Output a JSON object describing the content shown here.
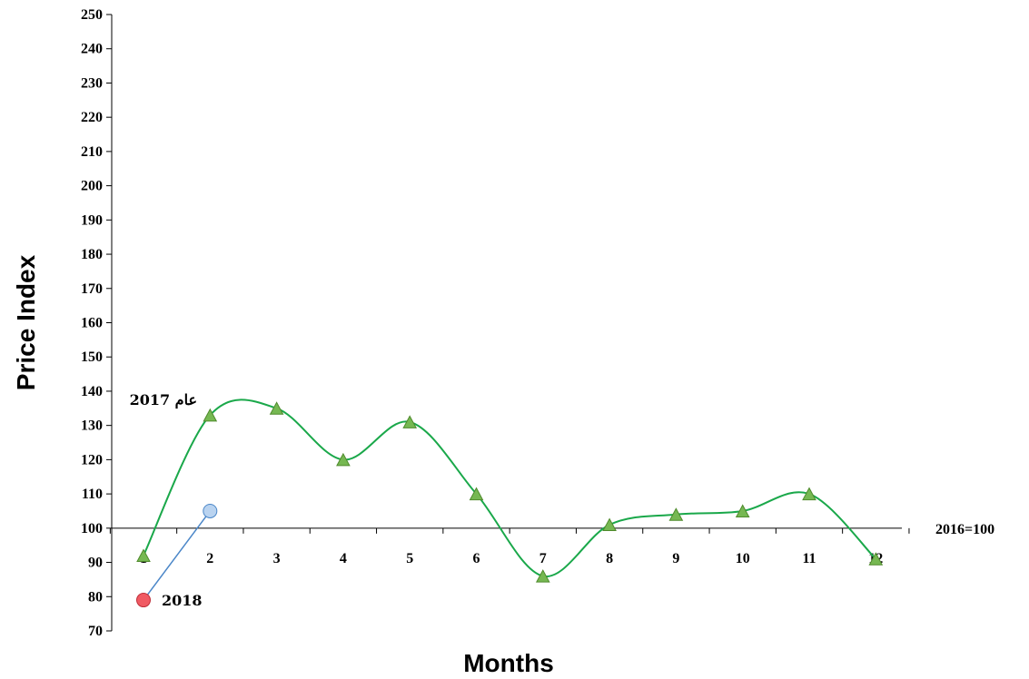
{
  "chart_data": {
    "type": "line",
    "xlabel": "Months",
    "ylabel": "Price Index",
    "base_note": "2016=100",
    "ylim": [
      70,
      250
    ],
    "y_ticks": [
      70,
      80,
      90,
      100,
      110,
      120,
      130,
      140,
      150,
      160,
      170,
      180,
      190,
      200,
      210,
      220,
      230,
      240,
      250
    ],
    "x_ticks": [
      "1",
      "2",
      "3",
      "4",
      "5",
      "6",
      "7",
      "8",
      "9",
      "10",
      "11",
      "12"
    ],
    "x_axis_crosses_at": 100,
    "grid": false,
    "series": [
      {
        "name": "عام 2017",
        "marker": "triangle",
        "color": "#1aa84a",
        "marker_fill": "#76b852",
        "smooth": true,
        "x": [
          1,
          2,
          3,
          4,
          5,
          6,
          7,
          8,
          9,
          10,
          11,
          12
        ],
        "values": [
          92,
          133,
          135,
          120,
          131,
          110,
          86,
          101,
          104,
          105,
          110,
          91
        ]
      },
      {
        "name": "2018",
        "marker": "circle",
        "color": "#4a86c8",
        "smooth": false,
        "x": [
          1,
          2
        ],
        "values": [
          79,
          105
        ],
        "point_colors": [
          "#f05a63",
          "#b9d3f0"
        ]
      }
    ]
  }
}
